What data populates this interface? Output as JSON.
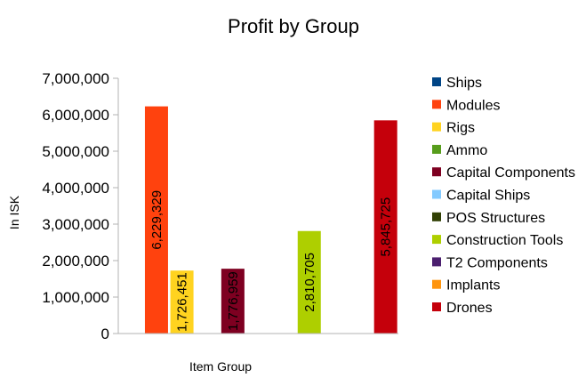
{
  "chart_data": {
    "type": "bar",
    "title": "Profit by Group",
    "xlabel": "Item Group",
    "ylabel": "In ISK",
    "ylim": [
      0,
      7000000
    ],
    "yticks": [
      0,
      1000000,
      2000000,
      3000000,
      4000000,
      5000000,
      6000000,
      7000000
    ],
    "ytick_labels": [
      "0",
      "1,000,000",
      "2,000,000",
      "3,000,000",
      "4,000,000",
      "5,000,000",
      "6,000,000",
      "7,000,000"
    ],
    "grid": false,
    "legend_position": "right",
    "series": [
      {
        "name": "Ships",
        "color": "#004586",
        "value": null,
        "label": ""
      },
      {
        "name": "Modules",
        "color": "#ff420e",
        "value": 6229329,
        "label": "6,229,329"
      },
      {
        "name": "Rigs",
        "color": "#ffd320",
        "value": 1726451,
        "label": "1,726,451"
      },
      {
        "name": "Ammo",
        "color": "#579d1c",
        "value": null,
        "label": ""
      },
      {
        "name": "Capital Components",
        "color": "#7e0021",
        "value": 1776959,
        "label": "1,776,959"
      },
      {
        "name": "Capital Ships",
        "color": "#83caff",
        "value": null,
        "label": ""
      },
      {
        "name": "POS Structures",
        "color": "#314004",
        "value": null,
        "label": ""
      },
      {
        "name": "Construction Tools",
        "color": "#aecf00",
        "value": 2810705,
        "label": "2,810,705"
      },
      {
        "name": "T2 Components",
        "color": "#4b1f6f",
        "value": null,
        "label": ""
      },
      {
        "name": "Implants",
        "color": "#ff950e",
        "value": null,
        "label": ""
      },
      {
        "name": "Drones",
        "color": "#c5000b",
        "value": 5845725,
        "label": "5,845,725"
      }
    ]
  }
}
